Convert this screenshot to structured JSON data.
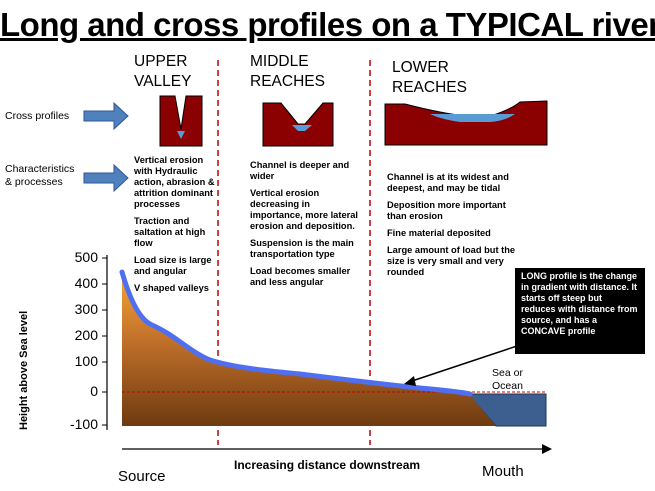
{
  "title": "Long and cross profiles on a TYPICAL river",
  "sections": {
    "upper": [
      "UPPER",
      "VALLEY"
    ],
    "middle": [
      "MIDDLE",
      "REACHES"
    ],
    "lower": [
      "LOWER",
      "REACHES"
    ]
  },
  "side_labels": {
    "cross_profiles": "Cross profiles",
    "characteristics": [
      "Characteristics",
      "& processes"
    ]
  },
  "upper_notes": [
    "Vertical erosion with Hydraulic action, abrasion & attrition dominant processes",
    "Traction and saltation at high flow",
    "Load size is large and angular",
    "V shaped valleys"
  ],
  "middle_notes": [
    "Channel is deeper and wider",
    "Vertical erosion decreasing in importance, more lateral erosion and deposition.",
    "Suspension is the main transportation type",
    "Load becomes smaller and less angular"
  ],
  "lower_notes": [
    "Channel is at its widest and deepest, and may be tidal",
    "Deposition more important than erosion",
    "Fine material deposited",
    "Large amount of load but the size is very small and very rounded"
  ],
  "y_ticks": [
    "500",
    "400",
    "300",
    "200",
    "100",
    "0",
    "-100"
  ],
  "y_axis_label": "Height above Sea level",
  "x_axis_label": "Increasing distance downstream",
  "source_label": "Source",
  "mouth_label": "Mouth",
  "sea_label": [
    "Sea or",
    "Ocean"
  ],
  "callout_text": "LONG profile is the change in gradient with distance.  It starts off steep but reduces with distance from source, and has a CONCAVE profile",
  "colors": {
    "valley": "#8b0000",
    "water": "#5b9bd5",
    "profile_line": "#4f6ff0",
    "land_top": "#f5a623",
    "land_bottom": "#7a3e0c",
    "sea": "#3d5f8f",
    "divider": "#c00000",
    "arrow": "#4f81bd"
  }
}
